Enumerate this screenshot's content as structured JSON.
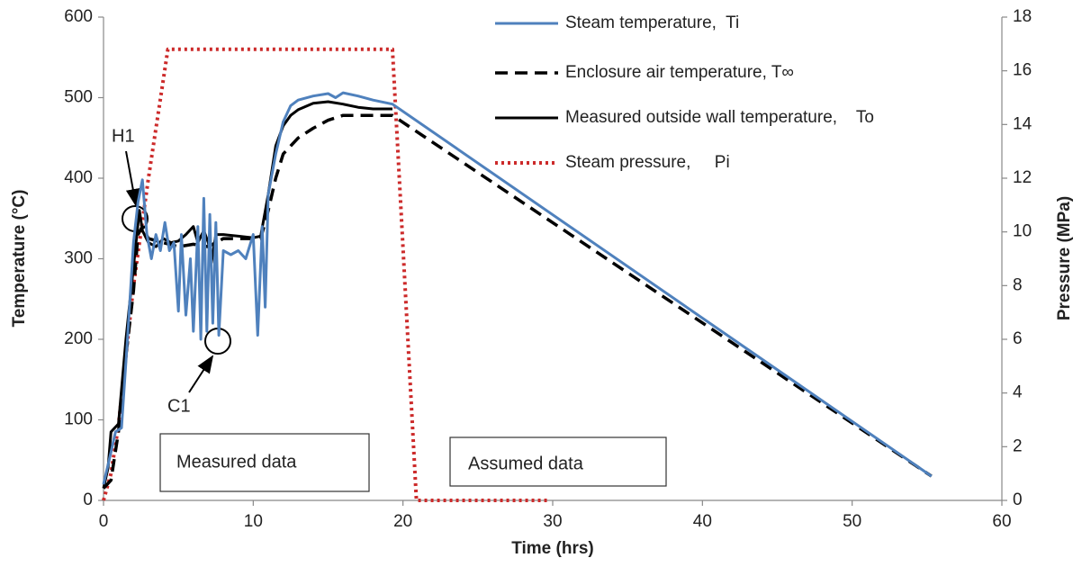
{
  "chart_data": {
    "type": "line",
    "xlabel": "Time (hrs)",
    "ylabel": "Temperature (°C)",
    "y2label": "Pressure (MPa)",
    "xlim": [
      0,
      60
    ],
    "xticks": [
      0,
      10,
      20,
      30,
      40,
      50,
      60
    ],
    "ylim": [
      0,
      600
    ],
    "yticks": [
      0,
      100,
      200,
      300,
      400,
      500,
      600
    ],
    "y2lim": [
      0,
      18
    ],
    "y2ticks": [
      0,
      2,
      4,
      6,
      8,
      10,
      12,
      14,
      16,
      18
    ],
    "grid": false,
    "legend": "top-right",
    "series": [
      {
        "name": "Steam temperature,  Ti",
        "color": "#4f81bd",
        "dash": "solid",
        "x": [
          0,
          0.5,
          0.8,
          1.2,
          1.6,
          2.0,
          2.3,
          2.6,
          2.9,
          3.2,
          3.5,
          3.8,
          4.1,
          4.4,
          4.7,
          5.0,
          5.2,
          5.5,
          5.8,
          6.0,
          6.3,
          6.5,
          6.7,
          6.9,
          7.1,
          7.3,
          7.5,
          7.7,
          8.0,
          8.5,
          9.0,
          9.5,
          10.0,
          10.3,
          10.6,
          10.8,
          11.0,
          11.5,
          12.0,
          12.5,
          13,
          14,
          15,
          15.5,
          16,
          17,
          18,
          19.3,
          55.3
        ],
        "values": [
          20,
          60,
          85,
          90,
          200,
          320,
          370,
          398,
          330,
          300,
          330,
          310,
          345,
          310,
          320,
          235,
          330,
          230,
          300,
          210,
          340,
          200,
          375,
          210,
          355,
          220,
          345,
          205,
          310,
          305,
          310,
          300,
          330,
          205,
          340,
          240,
          380,
          430,
          470,
          490,
          497,
          502,
          505,
          500,
          506,
          502,
          497,
          492,
          30
        ]
      },
      {
        "name": "Enclosure air temperature, T∞",
        "color": "#000000",
        "dash": "dashed",
        "x": [
          0,
          0.5,
          1,
          1.5,
          2,
          2.3,
          2.6,
          3,
          4,
          5,
          6,
          7,
          8,
          9,
          10.5,
          11,
          11.5,
          12,
          13,
          14,
          15,
          16,
          18,
          19.3,
          55.3
        ],
        "values": [
          15,
          25,
          85,
          180,
          260,
          330,
          340,
          325,
          320,
          315,
          318,
          315,
          325,
          325,
          325,
          360,
          400,
          430,
          450,
          462,
          472,
          478,
          478,
          478,
          30
        ]
      },
      {
        "name": "Measured outside wall temperature,    To",
        "color": "#000000",
        "dash": "solid",
        "x": [
          0,
          0.3,
          0.5,
          1,
          1.5,
          2,
          2.4,
          2.6,
          3,
          3.5,
          4,
          4.5,
          5,
          5.5,
          6,
          6.3,
          6.7,
          7,
          7.2,
          7.5,
          8,
          9,
          10,
          10.5,
          11,
          11.5,
          12,
          12.5,
          13,
          14,
          15,
          16,
          17,
          18,
          19.3
        ],
        "values": [
          15,
          40,
          85,
          95,
          200,
          290,
          360,
          335,
          320,
          315,
          325,
          320,
          322,
          330,
          340,
          320,
          335,
          320,
          295,
          330,
          330,
          328,
          326,
          328,
          380,
          440,
          465,
          478,
          485,
          493,
          495,
          492,
          488,
          486,
          486
        ]
      },
      {
        "name": "Steam pressure,     Pi",
        "color": "#cc2a2a",
        "dash": "dotted",
        "axis": "y2",
        "x": [
          0,
          0.5,
          1,
          2,
          3,
          4.3,
          19.3,
          20.9,
          29.8
        ],
        "values": [
          0,
          1,
          2.8,
          8,
          12,
          16.8,
          16.8,
          0,
          0
        ]
      }
    ],
    "annotations": [
      "H1",
      "C1",
      "Measured data",
      "Assumed data"
    ]
  }
}
